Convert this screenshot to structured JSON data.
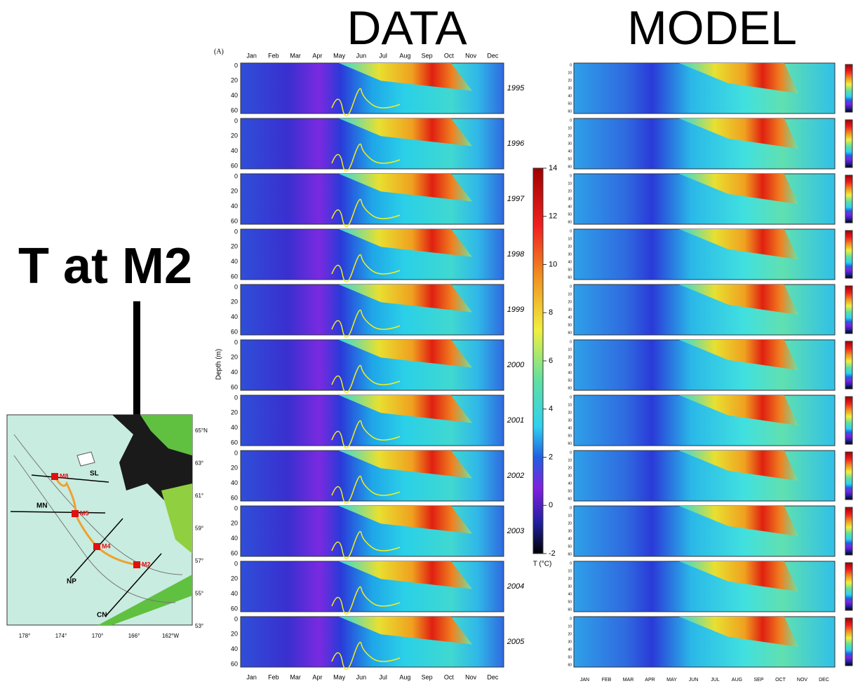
{
  "titles": {
    "data": "DATA",
    "model": "MODEL",
    "left": "T at M2"
  },
  "panel_label": "(A)",
  "months": [
    "Jan",
    "Feb",
    "Mar",
    "Apr",
    "May",
    "Jun",
    "Jul",
    "Aug",
    "Sep",
    "Oct",
    "Nov",
    "Dec"
  ],
  "years": [
    "1995",
    "1996",
    "1997",
    "1998",
    "1999",
    "2000",
    "2001",
    "2002",
    "2003",
    "2004",
    "2005"
  ],
  "depth_ticks": [
    "0",
    "20",
    "40",
    "60"
  ],
  "y_axis_label": "Depth (m)",
  "colorbar": {
    "ticks": [
      "14",
      "12",
      "10",
      "8",
      "6",
      "4",
      "2",
      "0",
      "-2"
    ],
    "label": "T (°C)"
  },
  "model_months": [
    "JAN",
    "FEB",
    "MAR",
    "APR",
    "MAY",
    "JUN",
    "JUL",
    "AUG",
    "SEP",
    "OCT",
    "NOV",
    "DEC"
  ],
  "model_depth_ticks": [
    "0",
    "10",
    "20",
    "30",
    "40",
    "50",
    "60"
  ],
  "map": {
    "stations": [
      "M8",
      "M5",
      "M4",
      "M2"
    ],
    "lines": [
      "SL",
      "MN",
      "NP",
      "CN"
    ],
    "lat_labels": [
      "65°N",
      "63°",
      "61°",
      "59°",
      "57°",
      "55°",
      "53°"
    ],
    "lon_labels": [
      "178°",
      "174°",
      "170°",
      "166°",
      "162°W"
    ]
  }
}
